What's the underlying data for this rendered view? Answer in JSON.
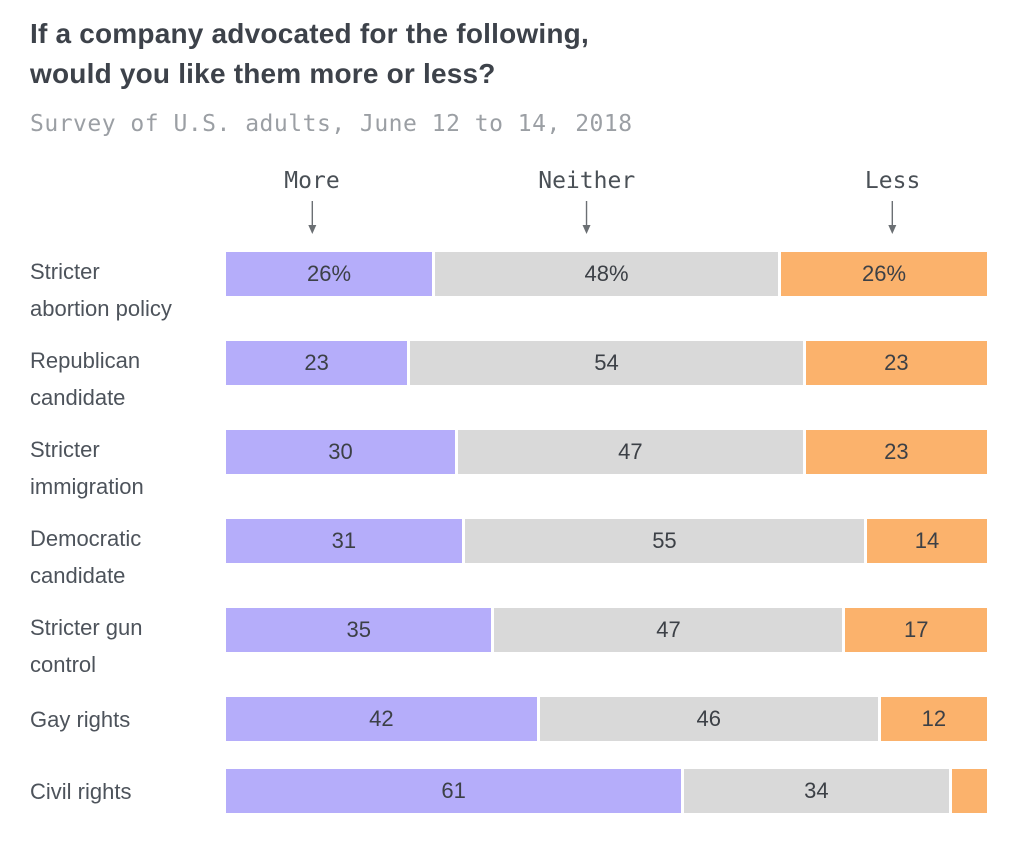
{
  "title": {
    "line1": "If a company advocated for the following,",
    "line2": "would you like them more or less?"
  },
  "subtitle": "Survey of U.S. adults, June 12 to 14, 2018",
  "colors": {
    "more": "#b5adfa",
    "neither": "#d9d9d9",
    "less": "#fbb26c",
    "text_dark": "#3c4046",
    "text_label": "#4d535b",
    "arrow": "#6b6f73"
  },
  "chart_data": {
    "type": "bar",
    "stacked": true,
    "orientation": "horizontal",
    "title": "If a company advocated for the following, would you like them more or less?",
    "subtitle": "Survey of U.S. adults, June 12 to 14, 2018",
    "legend_position": "top",
    "value_labels_shown": true,
    "xlim": [
      0,
      100
    ],
    "categories": [
      "Stricter abortion policy",
      "Republican candidate",
      "Stricter immigration",
      "Democratic candidate",
      "Stricter gun control",
      "Gay rights",
      "Civil rights"
    ],
    "category_label_lines": [
      [
        "Stricter",
        "abortion policy"
      ],
      [
        "Republican",
        "candidate"
      ],
      [
        "Stricter",
        "immigration"
      ],
      [
        "Democratic",
        "candidate"
      ],
      [
        "Stricter gun",
        "control"
      ],
      [
        "Gay rights"
      ],
      [
        "Civil rights"
      ]
    ],
    "series": [
      {
        "name": "More",
        "color": "#b5adfa",
        "values": [
          26,
          23,
          30,
          31,
          35,
          42,
          61
        ],
        "labels": [
          "26%",
          "23",
          "30",
          "31",
          "35",
          "42",
          "61"
        ]
      },
      {
        "name": "Neither",
        "color": "#d9d9d9",
        "values": [
          48,
          54,
          47,
          55,
          47,
          46,
          34
        ],
        "labels": [
          "48%",
          "54",
          "47",
          "55",
          "47",
          "46",
          "34"
        ]
      },
      {
        "name": "Less",
        "color": "#fbb26c",
        "values": [
          26,
          23,
          23,
          14,
          17,
          12,
          5
        ],
        "labels": [
          "26%",
          "23",
          "23",
          "14",
          "17",
          "12",
          ""
        ]
      }
    ]
  }
}
